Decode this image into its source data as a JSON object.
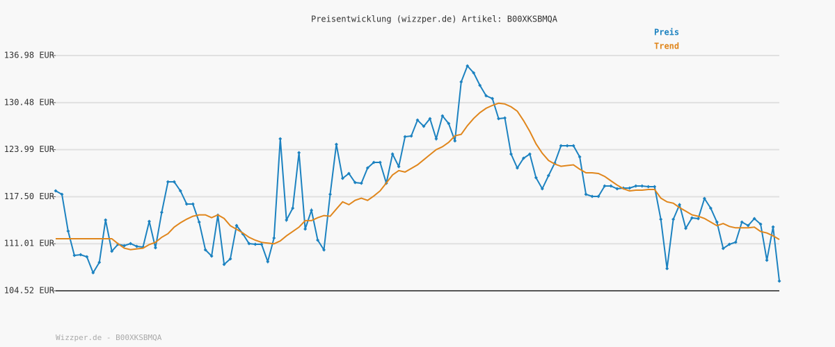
{
  "chart_data": {
    "type": "line",
    "title": "Preisentwicklung (wizzper.de) Artikel: B00XKSBMQA",
    "footer": "Wizzper.de - B00XKSBMQA",
    "legend": "top-right",
    "grid": true,
    "ylim": [
      104.52,
      136.98
    ],
    "yticks": [
      {
        "value": 104.52,
        "label": "104.52 EUR"
      },
      {
        "value": 111.01,
        "label": "111.01 EUR"
      },
      {
        "value": 117.5,
        "label": "117.50 EUR"
      },
      {
        "value": 123.99,
        "label": "123.99 EUR"
      },
      {
        "value": 130.48,
        "label": "130.48 EUR"
      },
      {
        "value": 136.98,
        "label": "136.98 EUR"
      }
    ],
    "series": [
      {
        "name": "Preis",
        "color": "#1c82c0",
        "markers": true,
        "values": [
          118.31,
          117.83,
          112.75,
          109.4,
          109.5,
          109.21,
          107.01,
          108.45,
          114.29,
          109.98,
          110.94,
          110.74,
          111.03,
          110.65,
          110.55,
          114.1,
          110.46,
          115.34,
          119.55,
          119.55,
          118.31,
          116.49,
          116.49,
          114.0,
          110.17,
          109.31,
          114.96,
          108.16,
          108.92,
          113.52,
          112.37,
          111.03,
          110.94,
          110.94,
          108.54,
          111.8,
          125.49,
          114.29,
          115.91,
          123.57,
          113.04,
          115.63,
          111.51,
          110.17,
          117.83,
          124.72,
          120.03,
          120.7,
          119.46,
          119.36,
          121.47,
          122.23,
          122.23,
          119.36,
          123.38,
          121.66,
          125.78,
          125.87,
          128.07,
          127.21,
          128.27,
          125.49,
          128.65,
          127.6,
          125.2,
          133.34,
          135.54,
          134.59,
          132.86,
          131.43,
          131.04,
          128.27,
          128.36,
          123.38,
          121.47,
          122.81,
          123.38,
          120.13,
          118.6,
          120.41,
          122.14,
          124.53,
          124.53,
          124.53,
          123.0,
          117.83,
          117.54,
          117.54,
          118.98,
          118.98,
          118.6,
          118.69,
          118.69,
          118.98,
          118.98,
          118.88,
          118.88,
          114.38,
          107.58,
          114.38,
          116.39,
          113.14,
          114.57,
          114.48,
          117.25,
          115.91,
          114.0,
          110.36,
          110.94,
          111.22,
          114.0,
          113.52,
          114.48,
          113.71,
          108.73,
          113.33,
          105.86
        ]
      },
      {
        "name": "Trend",
        "color": "#e0861c",
        "markers": false,
        "values": [
          111.7,
          111.7,
          111.7,
          111.7,
          111.7,
          111.7,
          111.7,
          111.7,
          111.7,
          111.7,
          111.0,
          110.4,
          110.2,
          110.3,
          110.4,
          110.9,
          111.2,
          111.9,
          112.4,
          113.3,
          113.9,
          114.4,
          114.8,
          115.0,
          115.0,
          114.6,
          115.0,
          114.5,
          113.5,
          113.0,
          112.5,
          111.9,
          111.5,
          111.2,
          111.1,
          111.0,
          111.4,
          112.1,
          112.7,
          113.3,
          114.2,
          114.2,
          114.6,
          114.9,
          114.8,
          115.8,
          116.8,
          116.4,
          117.0,
          117.3,
          117.0,
          117.6,
          118.3,
          119.4,
          120.5,
          121.1,
          120.9,
          121.4,
          121.9,
          122.6,
          123.3,
          124.0,
          124.4,
          125.0,
          125.9,
          126.1,
          127.3,
          128.3,
          129.1,
          129.7,
          130.1,
          130.4,
          130.3,
          129.9,
          129.3,
          128.0,
          126.5,
          124.8,
          123.5,
          122.5,
          122.0,
          121.7,
          121.8,
          121.9,
          121.3,
          120.8,
          120.8,
          120.7,
          120.3,
          119.7,
          119.1,
          118.6,
          118.3,
          118.4,
          118.4,
          118.5,
          118.5,
          117.3,
          116.8,
          116.6,
          116.0,
          115.5,
          115.0,
          114.8,
          114.5,
          114.0,
          113.5,
          113.8,
          113.4,
          113.2,
          113.2,
          113.2,
          113.3,
          112.7,
          112.5,
          112.1,
          111.6
        ]
      }
    ]
  }
}
